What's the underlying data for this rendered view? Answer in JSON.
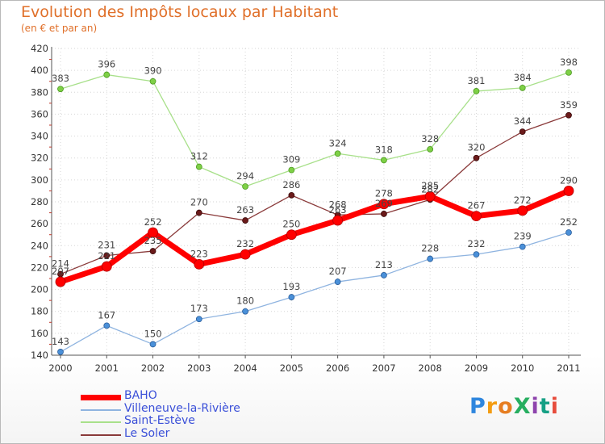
{
  "title": "Evolution des Impôts locaux par Habitant",
  "subtitle": "(en € et par an)",
  "logo": "ProXiti",
  "chart_data": {
    "type": "line",
    "title": "Evolution des Impôts locaux par Habitant",
    "subtitle": "(en € et par an)",
    "xlabel": "",
    "ylabel": "",
    "x": [
      "2000",
      "2001",
      "2002",
      "2003",
      "2004",
      "2005",
      "2006",
      "2007",
      "2008",
      "2009",
      "2010",
      "2011"
    ],
    "ylim": [
      140,
      420
    ],
    "yticks": [
      140,
      160,
      180,
      200,
      220,
      240,
      260,
      280,
      300,
      320,
      340,
      360,
      380,
      400,
      420
    ],
    "grid": true,
    "legend_position": "bottom-left",
    "series": [
      {
        "name": "BAHO",
        "color": "#ff0000",
        "values": [
          207,
          221,
          252,
          223,
          232,
          250,
          263,
          278,
          285,
          267,
          272,
          290
        ]
      },
      {
        "name": "Villeneuve-la-Rivière",
        "color": "#5b9bd5",
        "values": [
          143,
          167,
          150,
          173,
          180,
          193,
          207,
          213,
          228,
          232,
          239,
          252
        ]
      },
      {
        "name": "Saint-Estève",
        "color": "#8fdc5a",
        "values": [
          383,
          396,
          390,
          312,
          294,
          309,
          324,
          318,
          328,
          381,
          384,
          398
        ]
      },
      {
        "name": "Le Soler",
        "color": "#6b1a1a",
        "values": [
          214,
          231,
          235,
          270,
          263,
          286,
          268,
          269,
          282,
          320,
          344,
          359
        ]
      }
    ]
  }
}
